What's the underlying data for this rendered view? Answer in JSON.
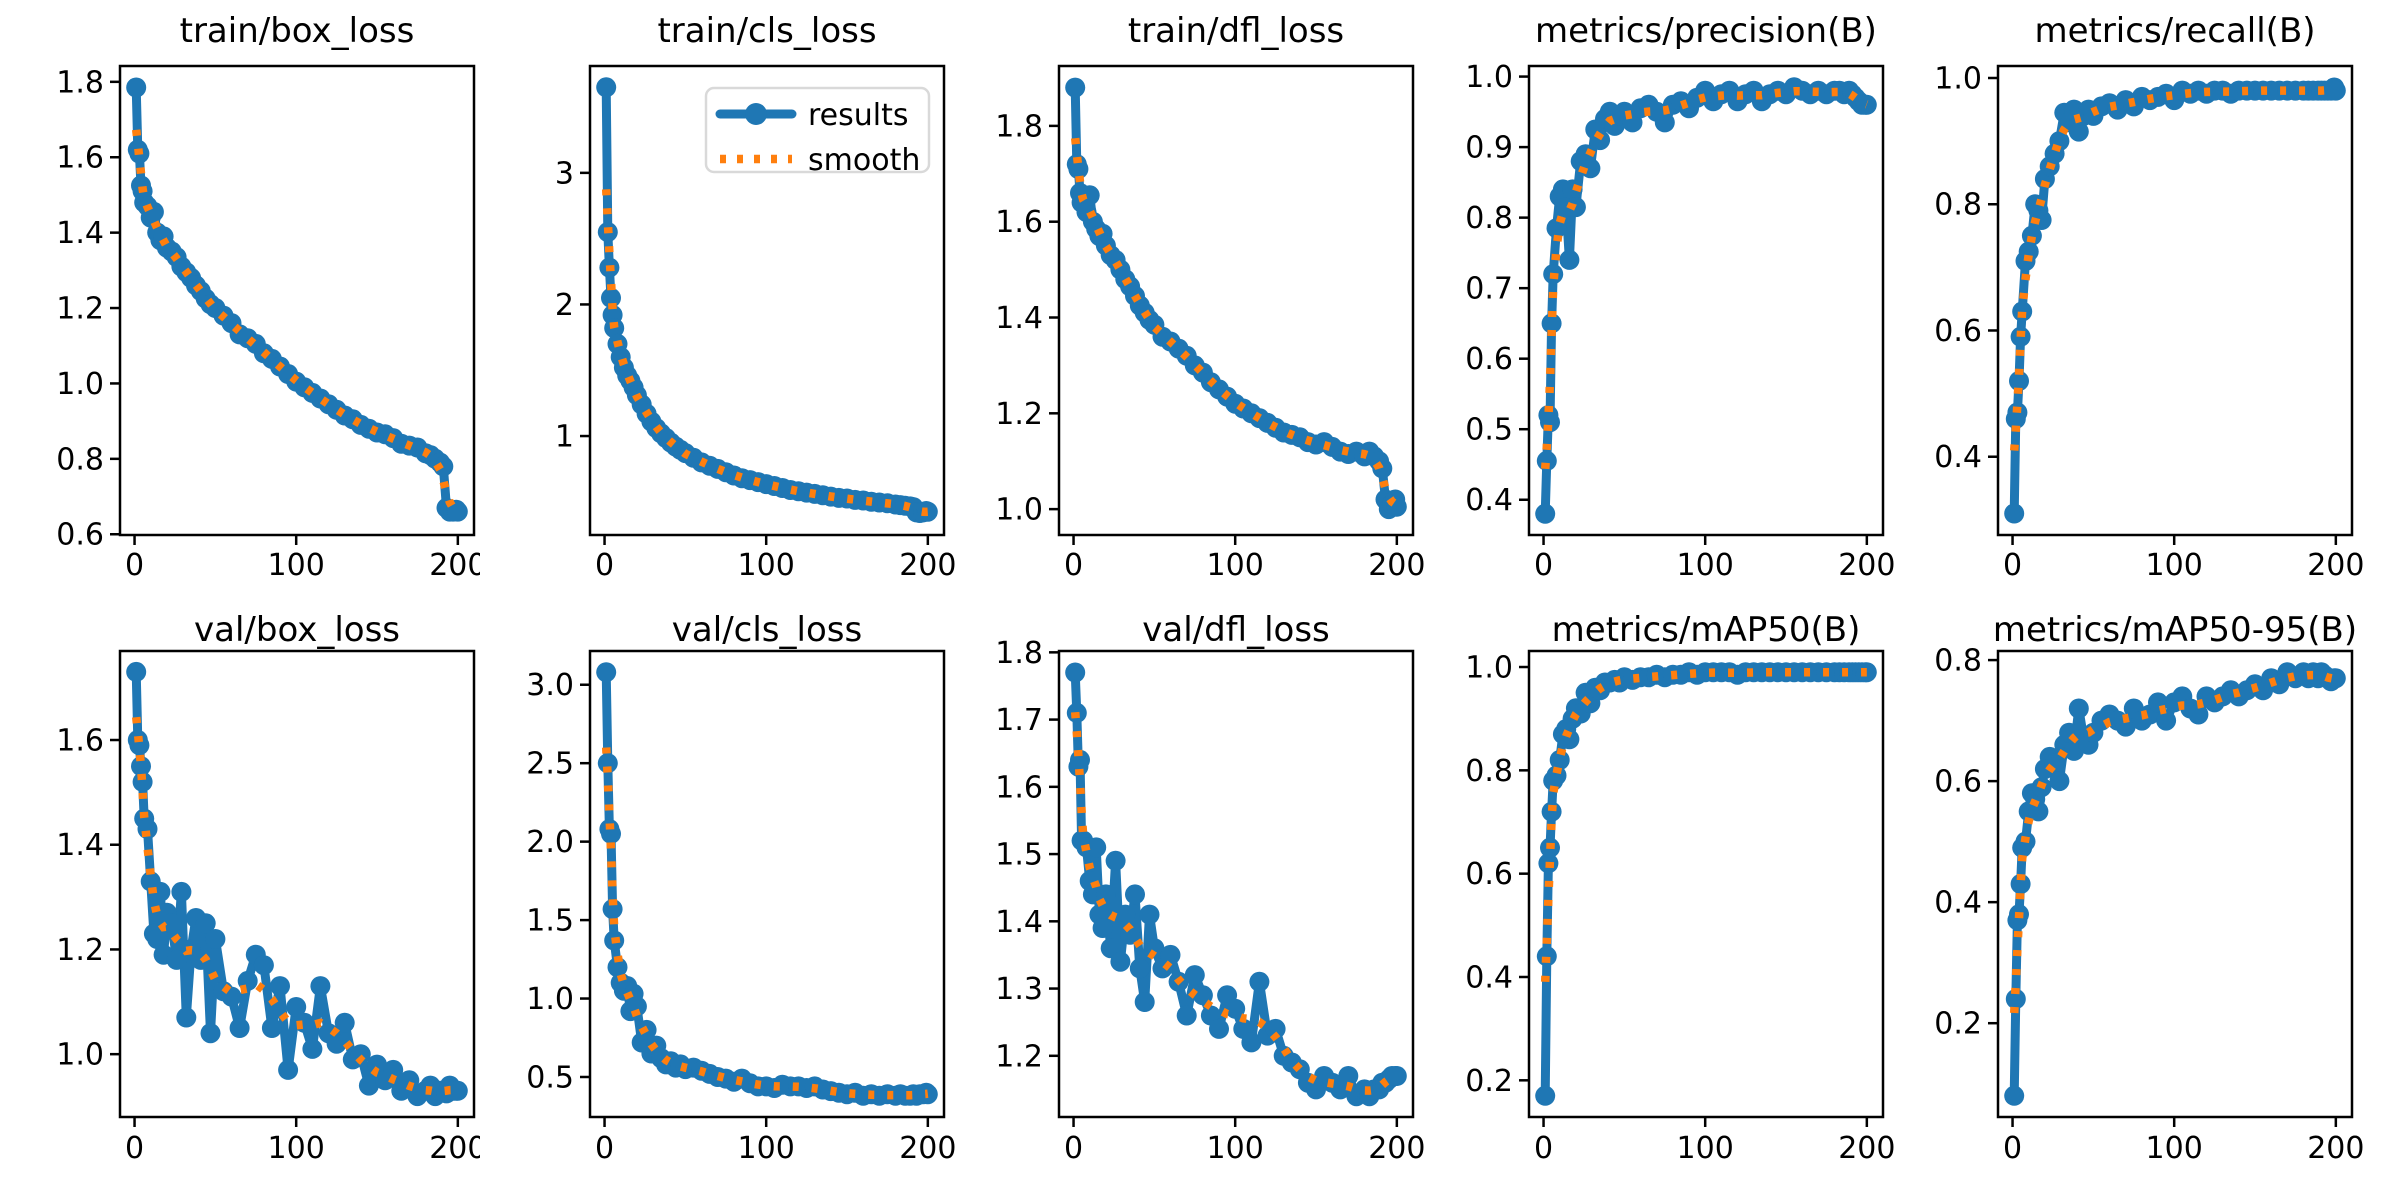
{
  "figure": {
    "background": "#ffffff",
    "description": "YOLO training results grid: 2 rows x 5 columns of line charts"
  },
  "colors": {
    "results": "#1f77b4",
    "smooth": "#ff7f0e",
    "spine": "#000000",
    "text": "#000000",
    "legend_border": "#d9d9d9"
  },
  "legend": {
    "results_label": "results",
    "smooth_label": "smooth"
  },
  "epochs": [
    1,
    2,
    3,
    4,
    5,
    6,
    8,
    10,
    12,
    14,
    16,
    18,
    20,
    23,
    26,
    29,
    32,
    35,
    38,
    41,
    44,
    47,
    50,
    55,
    60,
    65,
    70,
    75,
    80,
    85,
    90,
    95,
    100,
    105,
    110,
    115,
    120,
    125,
    130,
    135,
    140,
    145,
    150,
    155,
    160,
    165,
    170,
    175,
    180,
    183,
    186,
    189,
    191,
    193,
    195,
    197,
    199,
    200
  ],
  "chart_data": [
    {
      "type": "line",
      "title": "train/box_loss",
      "xlim": [
        -9,
        210
      ],
      "ylim": [
        0.598,
        1.842
      ],
      "xticks": [
        0,
        100,
        200
      ],
      "xtick_labels": [
        "0",
        "100",
        "200"
      ],
      "yticks": [
        0.6,
        0.8,
        1.0,
        1.2,
        1.4,
        1.6,
        1.8
      ],
      "ytick_labels": [
        "0.6",
        "0.8",
        "1.0",
        "1.2",
        "1.4",
        "1.6",
        "1.8"
      ],
      "legend_visible": false,
      "series": [
        {
          "name": "results",
          "x_ref": "epochs",
          "values": [
            1.785,
            1.62,
            1.61,
            1.525,
            1.51,
            1.48,
            1.47,
            1.44,
            1.455,
            1.4,
            1.38,
            1.39,
            1.36,
            1.35,
            1.335,
            1.31,
            1.295,
            1.28,
            1.26,
            1.245,
            1.225,
            1.21,
            1.2,
            1.18,
            1.16,
            1.13,
            1.12,
            1.105,
            1.08,
            1.065,
            1.045,
            1.025,
            1.005,
            0.99,
            0.975,
            0.96,
            0.945,
            0.93,
            0.915,
            0.905,
            0.89,
            0.88,
            0.87,
            0.865,
            0.855,
            0.84,
            0.835,
            0.83,
            0.815,
            0.81,
            0.8,
            0.79,
            0.78,
            0.67,
            0.66,
            0.66,
            0.665,
            0.66
          ]
        },
        {
          "name": "smooth",
          "derived_from": "results",
          "method": "gaussian_moving_average"
        }
      ]
    },
    {
      "type": "line",
      "title": "train/cls_loss",
      "xlim": [
        -9,
        210
      ],
      "ylim": [
        0.248,
        3.812
      ],
      "xticks": [
        0,
        100,
        200
      ],
      "xtick_labels": [
        "0",
        "100",
        "200"
      ],
      "yticks": [
        1,
        2,
        3
      ],
      "ytick_labels": [
        "1",
        "2",
        "3"
      ],
      "legend_visible": true,
      "series": [
        {
          "name": "results",
          "x_ref": "epochs",
          "values": [
            3.65,
            2.55,
            2.28,
            2.05,
            1.92,
            1.82,
            1.7,
            1.6,
            1.52,
            1.46,
            1.42,
            1.37,
            1.31,
            1.24,
            1.17,
            1.11,
            1.06,
            1.02,
            0.985,
            0.95,
            0.92,
            0.895,
            0.87,
            0.835,
            0.8,
            0.775,
            0.75,
            0.725,
            0.7,
            0.68,
            0.665,
            0.65,
            0.635,
            0.62,
            0.605,
            0.59,
            0.58,
            0.57,
            0.56,
            0.55,
            0.54,
            0.53,
            0.525,
            0.515,
            0.51,
            0.5,
            0.495,
            0.49,
            0.48,
            0.475,
            0.47,
            0.465,
            0.46,
            0.42,
            0.415,
            0.42,
            0.43,
            0.425
          ]
        },
        {
          "name": "smooth",
          "derived_from": "results",
          "method": "gaussian_moving_average"
        }
      ]
    },
    {
      "type": "line",
      "title": "train/dfl_loss",
      "xlim": [
        -9,
        210
      ],
      "ylim": [
        0.946,
        1.925
      ],
      "xticks": [
        0,
        100,
        200
      ],
      "xtick_labels": [
        "0",
        "100",
        "200"
      ],
      "yticks": [
        1.0,
        1.2,
        1.4,
        1.6,
        1.8
      ],
      "ytick_labels": [
        "1.0",
        "1.2",
        "1.4",
        "1.6",
        "1.8"
      ],
      "legend_visible": false,
      "series": [
        {
          "name": "results",
          "x_ref": "epochs",
          "values": [
            1.88,
            1.72,
            1.71,
            1.66,
            1.64,
            1.655,
            1.62,
            1.655,
            1.6,
            1.585,
            1.57,
            1.575,
            1.55,
            1.53,
            1.52,
            1.5,
            1.48,
            1.465,
            1.445,
            1.425,
            1.41,
            1.395,
            1.385,
            1.36,
            1.35,
            1.335,
            1.32,
            1.3,
            1.285,
            1.265,
            1.25,
            1.235,
            1.22,
            1.21,
            1.2,
            1.19,
            1.18,
            1.17,
            1.16,
            1.155,
            1.15,
            1.14,
            1.135,
            1.14,
            1.13,
            1.12,
            1.115,
            1.12,
            1.11,
            1.12,
            1.11,
            1.1,
            1.085,
            1.02,
            1.0,
            1.01,
            1.02,
            1.005
          ]
        },
        {
          "name": "smooth",
          "derived_from": "results",
          "method": "gaussian_moving_average"
        }
      ]
    },
    {
      "type": "line",
      "title": "metrics/precision(B)",
      "xlim": [
        -9,
        210
      ],
      "ylim": [
        0.35,
        1.015
      ],
      "xticks": [
        0,
        100,
        200
      ],
      "xtick_labels": [
        "0",
        "100",
        "200"
      ],
      "yticks": [
        0.4,
        0.5,
        0.6,
        0.7,
        0.8,
        0.9,
        1.0
      ],
      "ytick_labels": [
        "0.4",
        "0.5",
        "0.6",
        "0.7",
        "0.8",
        "0.9",
        "1.0"
      ],
      "legend_visible": false,
      "series": [
        {
          "name": "results",
          "x_ref": "epochs",
          "values": [
            0.38,
            0.455,
            0.52,
            0.51,
            0.65,
            0.72,
            0.785,
            0.83,
            0.84,
            0.815,
            0.74,
            0.84,
            0.815,
            0.88,
            0.89,
            0.87,
            0.925,
            0.91,
            0.94,
            0.95,
            0.93,
            0.945,
            0.95,
            0.935,
            0.955,
            0.96,
            0.95,
            0.935,
            0.96,
            0.965,
            0.955,
            0.97,
            0.98,
            0.965,
            0.975,
            0.98,
            0.965,
            0.975,
            0.98,
            0.965,
            0.975,
            0.98,
            0.975,
            0.985,
            0.98,
            0.975,
            0.98,
            0.975,
            0.98,
            0.98,
            0.975,
            0.98,
            0.975,
            0.97,
            0.965,
            0.96,
            0.96,
            0.96
          ]
        },
        {
          "name": "smooth",
          "derived_from": "results",
          "method": "gaussian_moving_average"
        }
      ]
    },
    {
      "type": "line",
      "title": "metrics/recall(B)",
      "xlim": [
        -9,
        210
      ],
      "ylim": [
        0.276,
        1.019
      ],
      "xticks": [
        0,
        100,
        200
      ],
      "xtick_labels": [
        "0",
        "100",
        "200"
      ],
      "yticks": [
        0.4,
        0.6,
        0.8,
        1.0
      ],
      "ytick_labels": [
        "0.4",
        "0.6",
        "0.8",
        "1.0"
      ],
      "legend_visible": false,
      "series": [
        {
          "name": "results",
          "x_ref": "epochs",
          "values": [
            0.31,
            0.46,
            0.47,
            0.52,
            0.59,
            0.63,
            0.71,
            0.725,
            0.75,
            0.8,
            0.79,
            0.775,
            0.84,
            0.86,
            0.88,
            0.9,
            0.945,
            0.93,
            0.95,
            0.915,
            0.94,
            0.95,
            0.94,
            0.955,
            0.96,
            0.95,
            0.965,
            0.955,
            0.97,
            0.965,
            0.97,
            0.975,
            0.965,
            0.98,
            0.975,
            0.98,
            0.975,
            0.98,
            0.98,
            0.975,
            0.98,
            0.98,
            0.98,
            0.98,
            0.98,
            0.98,
            0.98,
            0.98,
            0.98,
            0.98,
            0.98,
            0.98,
            0.98,
            0.98,
            0.98,
            0.98,
            0.985,
            0.98
          ]
        },
        {
          "name": "smooth",
          "derived_from": "results",
          "method": "gaussian_moving_average"
        }
      ]
    },
    {
      "type": "line",
      "title": "val/box_loss",
      "xlim": [
        -9,
        210
      ],
      "ylim": [
        0.88,
        1.77
      ],
      "xticks": [
        0,
        100,
        200
      ],
      "xtick_labels": [
        "0",
        "100",
        "200"
      ],
      "yticks": [
        1.0,
        1.2,
        1.4,
        1.6
      ],
      "ytick_labels": [
        "1.0",
        "1.2",
        "1.4",
        "1.6"
      ],
      "legend_visible": false,
      "series": [
        {
          "name": "results",
          "x_ref": "epochs",
          "values": [
            1.73,
            1.6,
            1.59,
            1.55,
            1.52,
            1.45,
            1.43,
            1.33,
            1.23,
            1.22,
            1.31,
            1.19,
            1.27,
            1.25,
            1.18,
            1.31,
            1.07,
            1.2,
            1.26,
            1.18,
            1.25,
            1.04,
            1.22,
            1.12,
            1.11,
            1.05,
            1.14,
            1.19,
            1.17,
            1.05,
            1.13,
            0.97,
            1.09,
            1.06,
            1.01,
            1.13,
            1.04,
            1.02,
            1.06,
            0.99,
            1.0,
            0.94,
            0.98,
            0.95,
            0.97,
            0.93,
            0.95,
            0.92,
            0.93,
            0.94,
            0.92,
            0.93,
            0.93,
            0.925,
            0.94,
            0.93,
            0.93,
            0.93
          ]
        },
        {
          "name": "smooth",
          "derived_from": "results",
          "method": "gaussian_moving_average"
        }
      ]
    },
    {
      "type": "line",
      "title": "val/cls_loss",
      "xlim": [
        -9,
        210
      ],
      "ylim": [
        0.245,
        3.215
      ],
      "xticks": [
        0,
        100,
        200
      ],
      "xtick_labels": [
        "0",
        "100",
        "200"
      ],
      "yticks": [
        0.5,
        1.0,
        1.5,
        2.0,
        2.5,
        3.0
      ],
      "ytick_labels": [
        "0.5",
        "1.0",
        "1.5",
        "2.0",
        "2.5",
        "3.0"
      ],
      "legend_visible": false,
      "series": [
        {
          "name": "results",
          "x_ref": "epochs",
          "values": [
            3.08,
            2.5,
            2.08,
            2.05,
            1.57,
            1.37,
            1.2,
            1.1,
            1.05,
            1.08,
            0.92,
            1.03,
            0.95,
            0.72,
            0.8,
            0.65,
            0.7,
            0.62,
            0.58,
            0.6,
            0.56,
            0.58,
            0.55,
            0.56,
            0.54,
            0.52,
            0.5,
            0.49,
            0.47,
            0.49,
            0.46,
            0.44,
            0.44,
            0.43,
            0.45,
            0.44,
            0.44,
            0.43,
            0.44,
            0.42,
            0.41,
            0.4,
            0.39,
            0.4,
            0.38,
            0.39,
            0.38,
            0.39,
            0.38,
            0.39,
            0.38,
            0.38,
            0.39,
            0.38,
            0.39,
            0.39,
            0.4,
            0.39
          ]
        },
        {
          "name": "smooth",
          "derived_from": "results",
          "method": "gaussian_moving_average"
        }
      ]
    },
    {
      "type": "line",
      "title": "val/dfl_loss",
      "xlim": [
        -9,
        210
      ],
      "ylim": [
        1.109,
        1.802
      ],
      "xticks": [
        0,
        100,
        200
      ],
      "xtick_labels": [
        "0",
        "100",
        "200"
      ],
      "yticks": [
        1.2,
        1.3,
        1.4,
        1.5,
        1.6,
        1.7,
        1.8
      ],
      "ytick_labels": [
        "1.2",
        "1.3",
        "1.4",
        "1.5",
        "1.6",
        "1.7",
        "1.8"
      ],
      "legend_visible": false,
      "series": [
        {
          "name": "results",
          "x_ref": "epochs",
          "values": [
            1.77,
            1.71,
            1.63,
            1.64,
            1.52,
            1.52,
            1.51,
            1.46,
            1.44,
            1.51,
            1.41,
            1.39,
            1.44,
            1.36,
            1.49,
            1.34,
            1.41,
            1.38,
            1.44,
            1.33,
            1.28,
            1.41,
            1.36,
            1.33,
            1.35,
            1.31,
            1.26,
            1.32,
            1.29,
            1.26,
            1.24,
            1.29,
            1.27,
            1.24,
            1.22,
            1.31,
            1.23,
            1.24,
            1.2,
            1.19,
            1.18,
            1.16,
            1.15,
            1.17,
            1.16,
            1.15,
            1.17,
            1.14,
            1.15,
            1.14,
            1.15,
            1.15,
            1.16,
            1.16,
            1.165,
            1.17,
            1.17,
            1.17
          ]
        },
        {
          "name": "smooth",
          "derived_from": "results",
          "method": "gaussian_moving_average"
        }
      ]
    },
    {
      "type": "line",
      "title": "metrics/mAP50(B)",
      "xlim": [
        -9,
        210
      ],
      "ylim": [
        0.129,
        1.031
      ],
      "xticks": [
        0,
        100,
        200
      ],
      "xtick_labels": [
        "0",
        "100",
        "200"
      ],
      "yticks": [
        0.2,
        0.4,
        0.6,
        0.8,
        1.0
      ],
      "ytick_labels": [
        "0.2",
        "0.4",
        "0.6",
        "0.8",
        "1.0"
      ],
      "legend_visible": false,
      "series": [
        {
          "name": "results",
          "x_ref": "epochs",
          "values": [
            0.17,
            0.44,
            0.62,
            0.65,
            0.72,
            0.78,
            0.79,
            0.82,
            0.87,
            0.88,
            0.86,
            0.9,
            0.92,
            0.91,
            0.95,
            0.93,
            0.96,
            0.955,
            0.97,
            0.97,
            0.975,
            0.97,
            0.98,
            0.975,
            0.98,
            0.98,
            0.985,
            0.98,
            0.985,
            0.985,
            0.99,
            0.985,
            0.99,
            0.99,
            0.99,
            0.99,
            0.985,
            0.99,
            0.99,
            0.99,
            0.99,
            0.99,
            0.99,
            0.99,
            0.99,
            0.99,
            0.99,
            0.99,
            0.99,
            0.99,
            0.99,
            0.99,
            0.99,
            0.99,
            0.99,
            0.99,
            0.99,
            0.99
          ]
        },
        {
          "name": "smooth",
          "derived_from": "results",
          "method": "gaussian_moving_average"
        }
      ]
    },
    {
      "type": "line",
      "title": "metrics/mAP50-95(B)",
      "xlim": [
        -9,
        210
      ],
      "ylim": [
        0.045,
        0.815
      ],
      "xticks": [
        0,
        100,
        200
      ],
      "xtick_labels": [
        "0",
        "100",
        "200"
      ],
      "yticks": [
        0.2,
        0.4,
        0.6,
        0.8
      ],
      "ytick_labels": [
        "0.2",
        "0.4",
        "0.6",
        "0.8"
      ],
      "legend_visible": false,
      "series": [
        {
          "name": "results",
          "x_ref": "epochs",
          "values": [
            0.08,
            0.24,
            0.37,
            0.38,
            0.43,
            0.49,
            0.5,
            0.55,
            0.58,
            0.57,
            0.55,
            0.59,
            0.62,
            0.64,
            0.63,
            0.6,
            0.66,
            0.68,
            0.65,
            0.72,
            0.67,
            0.66,
            0.68,
            0.7,
            0.71,
            0.7,
            0.69,
            0.72,
            0.7,
            0.71,
            0.73,
            0.7,
            0.73,
            0.74,
            0.72,
            0.71,
            0.74,
            0.73,
            0.74,
            0.75,
            0.74,
            0.75,
            0.76,
            0.75,
            0.77,
            0.76,
            0.78,
            0.77,
            0.78,
            0.77,
            0.78,
            0.77,
            0.78,
            0.775,
            0.77,
            0.765,
            0.77,
            0.77
          ]
        },
        {
          "name": "smooth",
          "derived_from": "results",
          "method": "gaussian_moving_average"
        }
      ]
    }
  ]
}
